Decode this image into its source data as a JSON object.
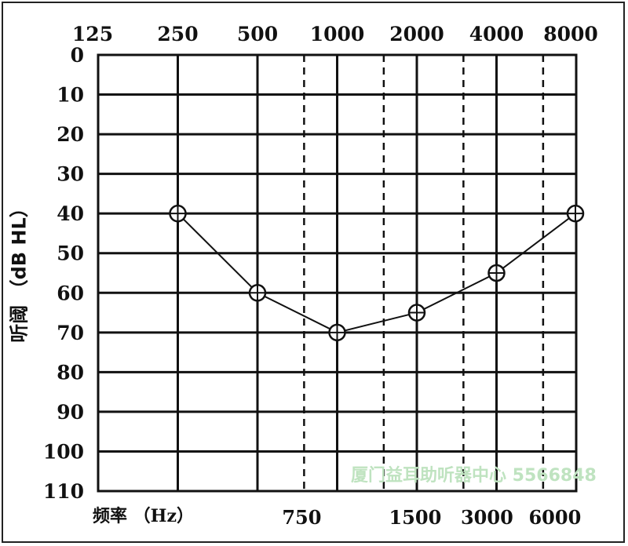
{
  "chart_data": {
    "type": "line",
    "xlabel": "频率 （Hz）",
    "ylabel": "听阈 （dB HL）",
    "y_ticks": [
      "0",
      "10",
      "20",
      "30",
      "40",
      "50",
      "60",
      "70",
      "80",
      "90",
      "100",
      "110"
    ],
    "ylim": [
      0,
      110
    ],
    "y_inverted": true,
    "x_scale": "log2-octave",
    "x_top_ticks": [
      "125",
      "250",
      "500",
      "1000",
      "2000",
      "4000",
      "8000"
    ],
    "x_bottom_ticks": [
      "750",
      "1500",
      "3000",
      "6000"
    ],
    "x_bottom_tick_freqs": [
      750,
      1500,
      3000,
      6000
    ],
    "x_top_tick_freqs": [
      125,
      250,
      500,
      1000,
      2000,
      4000,
      8000
    ],
    "grid": "on",
    "series": [
      {
        "marker": "circle-cross",
        "x": [
          250,
          500,
          1000,
          2000,
          4000,
          8000
        ],
        "y": [
          40,
          60,
          70,
          65,
          55,
          40
        ]
      }
    ]
  },
  "watermark": "厦门益耳助听器中心 5566848"
}
